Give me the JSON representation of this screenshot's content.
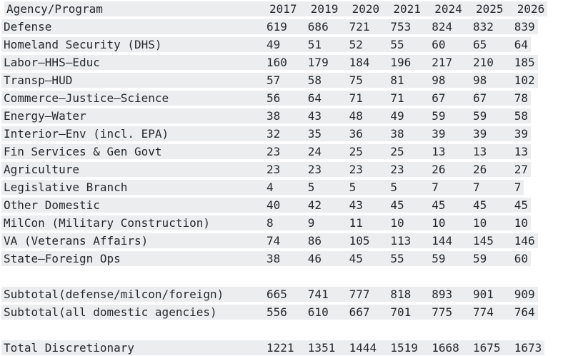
{
  "colors": {
    "row_band": "#ebedef",
    "text": "#26292c",
    "background": "#ffffff"
  },
  "table": {
    "columns": [
      "Agency/Program",
      "2017",
      "2019",
      "2020",
      "2021",
      "2024",
      "2025",
      "2026"
    ],
    "rows": [
      {
        "type": "data",
        "label": "Defense",
        "values": [
          "619",
          "686",
          "721",
          "753",
          "824",
          "832",
          "839"
        ]
      },
      {
        "type": "data",
        "label": "Homeland Security (DHS)",
        "values": [
          "49",
          "51",
          "52",
          "55",
          "60",
          "65",
          "64"
        ]
      },
      {
        "type": "data",
        "label": "Labor–HHS–Educ",
        "values": [
          "160",
          "179",
          "184",
          "196",
          "217",
          "210",
          "185"
        ]
      },
      {
        "type": "data",
        "label": "Transp–HUD",
        "values": [
          "57",
          "58",
          "75",
          "81",
          "98",
          "98",
          "102"
        ]
      },
      {
        "type": "data",
        "label": "Commerce–Justice–Science",
        "values": [
          "56",
          "64",
          "71",
          "71",
          "67",
          "67",
          "78"
        ]
      },
      {
        "type": "data",
        "label": "Energy–Water",
        "values": [
          "38",
          "43",
          "48",
          "49",
          "59",
          "59",
          "58"
        ]
      },
      {
        "type": "data",
        "label": "Interior–Env (incl. EPA)",
        "values": [
          "32",
          "35",
          "36",
          "38",
          "39",
          "39",
          "39"
        ]
      },
      {
        "type": "data",
        "label": "Fin Services & Gen Govt",
        "values": [
          "23",
          "24",
          "25",
          "25",
          "13",
          "13",
          "13"
        ]
      },
      {
        "type": "data",
        "label": "Agriculture",
        "values": [
          "23",
          "23",
          "23",
          "23",
          "26",
          "26",
          "27"
        ]
      },
      {
        "type": "data",
        "label": "Legislative Branch",
        "values": [
          "4",
          "5",
          "5",
          "5",
          "7",
          "7",
          "7"
        ]
      },
      {
        "type": "data",
        "label": "Other Domestic",
        "values": [
          "40",
          "42",
          "43",
          "45",
          "45",
          "45",
          "45"
        ]
      },
      {
        "type": "data",
        "label": "MilCon (Military Construction)",
        "values": [
          "8",
          "9",
          "11",
          "10",
          "10",
          "10",
          "10"
        ]
      },
      {
        "type": "data",
        "label": "VA (Veterans Affairs)",
        "values": [
          "74",
          "86",
          "105",
          "113",
          "144",
          "145",
          "146"
        ]
      },
      {
        "type": "data",
        "label": "State–Foreign Ops",
        "values": [
          "38",
          "46",
          "45",
          "55",
          "59",
          "59",
          "60"
        ]
      },
      {
        "type": "spacer"
      },
      {
        "type": "data",
        "label": "Subtotal(defense/milcon/foreign)",
        "values": [
          "665",
          "741",
          "777",
          "818",
          "893",
          "901",
          "909"
        ]
      },
      {
        "type": "data",
        "label": "Subtotal(all domestic agencies)",
        "values": [
          "556",
          "610",
          "667",
          "701",
          "775",
          "774",
          "764"
        ]
      },
      {
        "type": "spacer"
      },
      {
        "type": "data",
        "label": "Total Discretionary",
        "values": [
          "1221",
          "1351",
          "1444",
          "1519",
          "1668",
          "1675",
          "1673"
        ]
      }
    ]
  }
}
